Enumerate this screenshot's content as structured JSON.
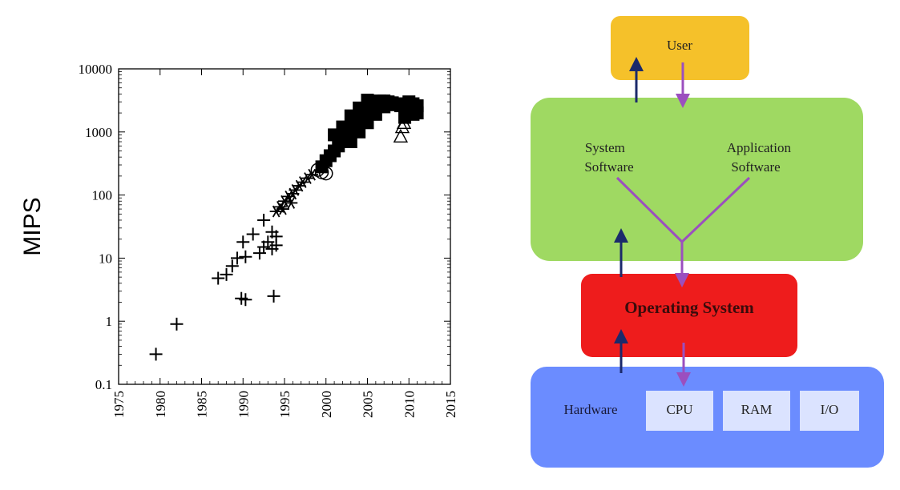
{
  "chart_data": {
    "type": "scatter",
    "ylabel": "MIPS",
    "xlabel": "",
    "title": "",
    "yscale": "log",
    "ylim": [
      0.1,
      10000
    ],
    "xlim": [
      1975,
      2015
    ],
    "y_ticks": [
      "0.1",
      "1",
      "10",
      "100",
      "1000",
      "10000"
    ],
    "x_ticks": [
      "1975",
      "1980",
      "1985",
      "1990",
      "1995",
      "2000",
      "2005",
      "2010",
      "2015"
    ],
    "grid": false,
    "series": [
      {
        "marker": "plus",
        "points": [
          [
            1979.5,
            0.3
          ],
          [
            1982,
            0.9
          ],
          [
            1987,
            4.8
          ],
          [
            1988,
            5.5
          ],
          [
            1988.7,
            7.5
          ],
          [
            1989.3,
            10
          ],
          [
            1990,
            18
          ],
          [
            1990.3,
            10.5
          ],
          [
            1991.2,
            24
          ],
          [
            1992,
            12
          ],
          [
            1992.5,
            40
          ],
          [
            1992.5,
            15
          ],
          [
            1993,
            18
          ],
          [
            1993.5,
            26
          ],
          [
            1994,
            16
          ],
          [
            1994,
            22
          ],
          [
            1993.5,
            14
          ],
          [
            1989.8,
            2.3
          ],
          [
            1990.3,
            2.2
          ],
          [
            1993.7,
            2.5
          ]
        ]
      },
      {
        "marker": "asterisk",
        "points": [
          [
            1994,
            55
          ],
          [
            1994.5,
            65
          ],
          [
            1995,
            80
          ],
          [
            1995.5,
            95
          ],
          [
            1996,
            105
          ],
          [
            1996.3,
            120
          ],
          [
            1996.8,
            140
          ],
          [
            1997.2,
            160
          ],
          [
            1997.8,
            185
          ],
          [
            1998.3,
            210
          ],
          [
            1994.8,
            60
          ],
          [
            1995.8,
            75
          ]
        ]
      },
      {
        "marker": "square",
        "points": [
          [
            1999.5,
            280
          ],
          [
            2000,
            350
          ],
          [
            2000.5,
            420
          ],
          [
            2001,
            500
          ],
          [
            2001.5,
            600
          ],
          [
            2002,
            750
          ],
          [
            2002.5,
            900
          ],
          [
            2003,
            1100
          ],
          [
            2003.5,
            1400
          ],
          [
            2004,
            1700
          ],
          [
            2004.5,
            2100
          ],
          [
            2005,
            2500
          ],
          [
            2005.5,
            2800
          ],
          [
            2006,
            3000
          ],
          [
            2006.5,
            3100
          ],
          [
            2007,
            3100
          ],
          [
            2007.5,
            3000
          ],
          [
            2008,
            2900
          ],
          [
            2008.5,
            2700
          ],
          [
            2009,
            2600
          ],
          [
            2009.5,
            2800
          ],
          [
            2010,
            3000
          ],
          [
            2010.5,
            2800
          ],
          [
            2011,
            2600
          ],
          [
            2001,
            900
          ],
          [
            2002,
            1200
          ],
          [
            2003,
            1800
          ],
          [
            2004,
            2400
          ],
          [
            2005,
            3200
          ],
          [
            2003,
            700
          ],
          [
            2004,
            1000
          ],
          [
            2005,
            1400
          ],
          [
            2006,
            1900
          ],
          [
            2007,
            2500
          ],
          [
            2009.5,
            1700
          ],
          [
            2010.5,
            1900
          ],
          [
            2011,
            2000
          ]
        ]
      },
      {
        "marker": "circle",
        "points": [
          [
            1999,
            250
          ],
          [
            1999.5,
            230
          ],
          [
            2000,
            220
          ]
        ]
      },
      {
        "marker": "triangle",
        "points": [
          [
            2009,
            850
          ],
          [
            2009.2,
            1200
          ],
          [
            2009.4,
            1400
          ]
        ]
      }
    ]
  },
  "diagram": {
    "user_label": "User",
    "system_software_label": "System Software",
    "application_software_label": "Application Software",
    "os_label": "Operating System",
    "hardware_label": "Hardware",
    "hardware_items": [
      "CPU",
      "RAM",
      "I/O"
    ],
    "colors": {
      "user": "#f5c12a",
      "software": "#9fd962",
      "os": "#ee1c1c",
      "hardware": "#6b8cff",
      "hardware_item": "#dbe3ff",
      "arrow_up": "#1b2a6b",
      "arrow_down": "#9b4fbf"
    }
  }
}
